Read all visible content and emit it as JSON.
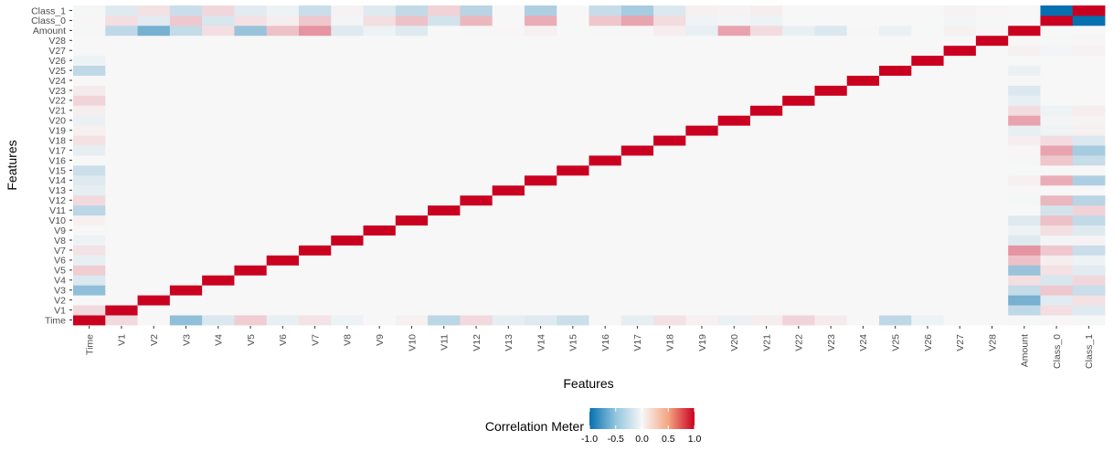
{
  "chart_data": {
    "type": "heatmap",
    "title": "",
    "xlabel": "Features",
    "ylabel": "Features",
    "categories": [
      "Time",
      "V1",
      "V2",
      "V3",
      "V4",
      "V5",
      "V6",
      "V7",
      "V8",
      "V9",
      "V10",
      "V11",
      "V12",
      "V13",
      "V14",
      "V15",
      "V16",
      "V17",
      "V18",
      "V19",
      "V20",
      "V21",
      "V22",
      "V23",
      "V24",
      "V25",
      "V26",
      "V27",
      "V28",
      "Amount",
      "Class_0",
      "Class_1"
    ],
    "value_range": [
      -1,
      1
    ],
    "colors": {
      "neg": "#0571b0",
      "mid": "#f7f7f7",
      "pos": "#ca0020",
      "panel": "#f4f4f4"
    },
    "legend": {
      "title": "Correlation Meter",
      "ticks": [
        -1.0,
        -0.5,
        0.0,
        0.5,
        1.0
      ],
      "tick_labels": [
        "-1.0",
        "-0.5",
        "0.0",
        "0.5",
        "1.0"
      ],
      "placement": "bottom"
    },
    "cells": {
      "Time": {
        "V1": 0.12,
        "V3": -0.42,
        "V4": -0.11,
        "V5": 0.17,
        "V6": -0.06,
        "V7": 0.08,
        "V8": -0.04,
        "V10": 0.03,
        "V11": -0.25,
        "V12": 0.12,
        "V13": -0.07,
        "V14": -0.1,
        "V15": -0.18,
        "V17": -0.07,
        "V18": 0.09,
        "V19": 0.03,
        "V20": -0.05,
        "V21": 0.04,
        "V22": 0.14,
        "V23": 0.05,
        "V25": -0.23,
        "V26": -0.04,
        "Amount": -0.01,
        "Class_0": 0.01,
        "Class_1": -0.01
      },
      "V1": {
        "Amount": -0.23,
        "Class_0": 0.1,
        "Class_1": -0.1
      },
      "V2": {
        "Amount": -0.53,
        "Class_0": -0.09,
        "Class_1": 0.09
      },
      "V3": {
        "Amount": -0.21,
        "Class_0": 0.19,
        "Class_1": -0.19
      },
      "V4": {
        "Amount": 0.1,
        "Class_0": -0.13,
        "Class_1": 0.13
      },
      "V5": {
        "Amount": -0.39,
        "Class_0": 0.09,
        "Class_1": -0.09
      },
      "V6": {
        "Amount": 0.22,
        "Class_0": 0.04,
        "Class_1": -0.04
      },
      "V7": {
        "Amount": 0.4,
        "Class_0": 0.19,
        "Class_1": -0.19
      },
      "V8": {
        "Amount": -0.1,
        "Class_0": -0.02,
        "Class_1": 0.02
      },
      "V9": {
        "Amount": -0.04,
        "Class_0": 0.1,
        "Class_1": -0.1
      },
      "V10": {
        "Amount": -0.1,
        "Class_0": 0.22,
        "Class_1": -0.22
      },
      "V11": {
        "Amount": 0,
        "Class_0": -0.15,
        "Class_1": 0.15
      },
      "V12": {
        "Amount": -0.01,
        "Class_0": 0.26,
        "Class_1": -0.26
      },
      "V13": {
        "Amount": 0.01,
        "Class_0": 0.0,
        "Class_1": 0.0
      },
      "V14": {
        "Amount": 0.03,
        "Class_0": 0.3,
        "Class_1": -0.3
      },
      "V15": {
        "Amount": -0.003,
        "Class_0": 0.0,
        "Class_1": 0.0
      },
      "V16": {
        "Amount": -0.004,
        "Class_0": 0.2,
        "Class_1": -0.2
      },
      "V17": {
        "Amount": 0.007,
        "Class_0": 0.33,
        "Class_1": -0.33
      },
      "V18": {
        "Amount": 0.04,
        "Class_0": 0.11,
        "Class_1": -0.11
      },
      "V19": {
        "Amount": -0.06,
        "Class_0": -0.03,
        "Class_1": 0.03
      },
      "V20": {
        "Amount": 0.34,
        "Class_0": -0.02,
        "Class_1": 0.02
      },
      "V21": {
        "Amount": 0.11,
        "Class_0": -0.04,
        "Class_1": 0.04
      },
      "V22": {
        "Amount": -0.06,
        "Class_0": 0.0,
        "Class_1": 0.0
      },
      "V23": {
        "Amount": -0.11,
        "Class_0": 0.0,
        "Class_1": 0.0
      },
      "V24": {
        "Amount": 0.005,
        "Class_0": 0.0,
        "Class_1": 0.0
      },
      "V25": {
        "Amount": -0.05,
        "Class_0": 0.0,
        "Class_1": 0.0
      },
      "V26": {
        "Amount": -0.003,
        "Class_0": 0.0,
        "Class_1": 0.0
      },
      "V27": {
        "Amount": 0.03,
        "Class_0": -0.02,
        "Class_1": 0.02
      },
      "V28": {
        "Amount": 0.01,
        "Class_0": -0.01,
        "Class_1": 0.01
      },
      "Class_0": {
        "Class_1": -1.0
      }
    }
  }
}
